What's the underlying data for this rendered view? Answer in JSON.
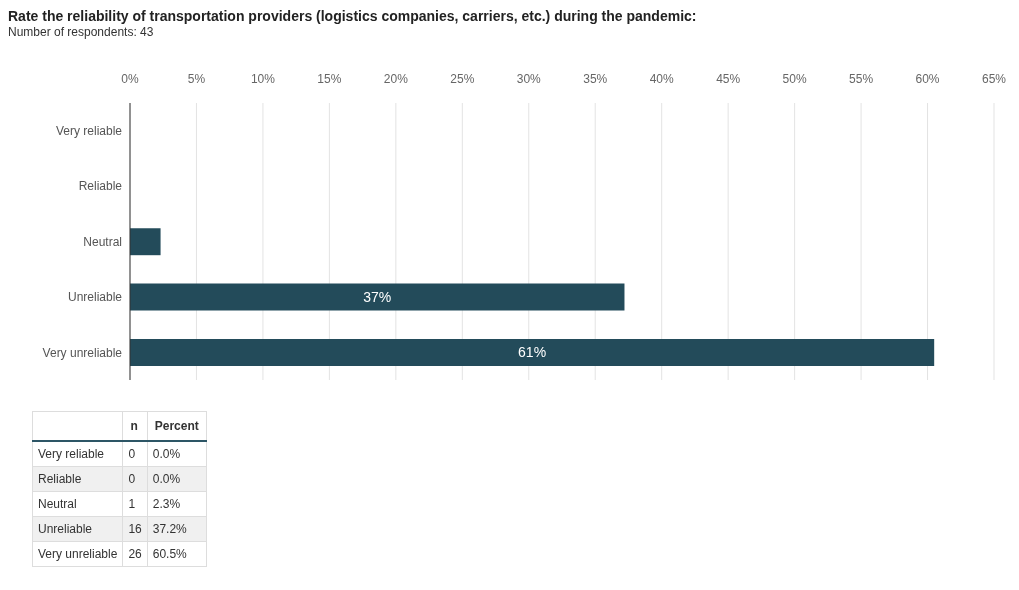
{
  "chart_data": [
    {
      "type": "bar",
      "orientation": "horizontal",
      "title": "Rate the reliability of transportation providers (logistics companies, carriers, etc.) during the pandemic:",
      "subtitle": "Number of respondents: 43",
      "categories": [
        "Very reliable",
        "Reliable",
        "Neutral",
        "Unreliable",
        "Very unreliable"
      ],
      "values": [
        0,
        0,
        2.3,
        37.2,
        60.5
      ],
      "value_labels": [
        null,
        null,
        null,
        "37%",
        "61%"
      ],
      "color": "#234b5a",
      "xlim": [
        0,
        65
      ],
      "xticks": [
        {
          "value": 0,
          "label": "0%"
        },
        {
          "value": 5,
          "label": "5%"
        },
        {
          "value": 10,
          "label": "10%"
        },
        {
          "value": 15,
          "label": "15%"
        },
        {
          "value": 20,
          "label": "20%"
        },
        {
          "value": 25,
          "label": "25%"
        },
        {
          "value": 30,
          "label": "30%"
        },
        {
          "value": 35,
          "label": "35%"
        },
        {
          "value": 40,
          "label": "40%"
        },
        {
          "value": 45,
          "label": "45%"
        },
        {
          "value": 50,
          "label": "50%"
        },
        {
          "value": 55,
          "label": "55%"
        },
        {
          "value": 60,
          "label": "60%"
        },
        {
          "value": 65,
          "label": "65%"
        }
      ],
      "grid": "x"
    },
    {
      "type": "other",
      "categories": [
        "Very reliable",
        "Reliable",
        "Neutral",
        "Unreliable",
        "Very unreliable"
      ],
      "annotations": [
        "n",
        "Percent",
        "0",
        "0.0%",
        "0",
        "0.0%",
        "1",
        "2.3%",
        "16",
        "37.2%",
        "26",
        "60.5%"
      ]
    }
  ]
}
